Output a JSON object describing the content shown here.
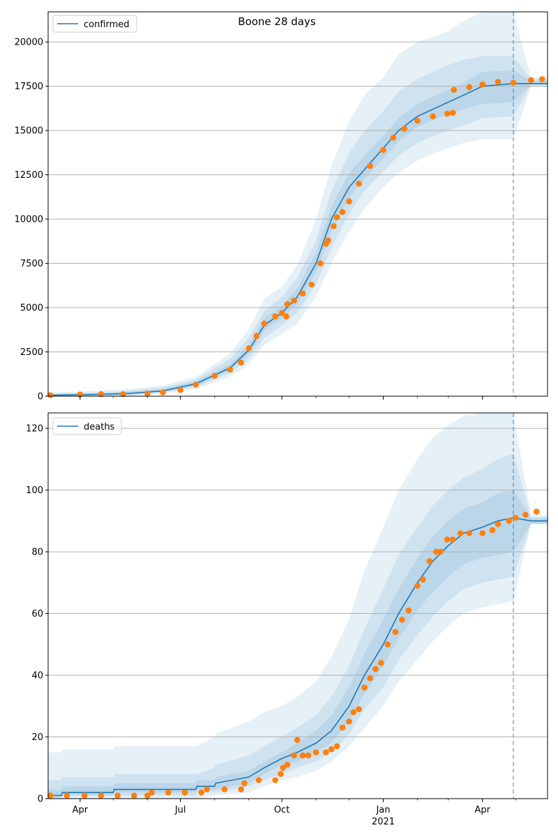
{
  "figure": {
    "title": "Boone 28 days"
  },
  "colors": {
    "model_line": "#1f77b4",
    "observed_points": "#ff7f0e",
    "band": "#1f77b4",
    "grid": "#b0b0b0",
    "forecast_marker": "#1f77b4"
  },
  "chart_data": [
    {
      "type": "line",
      "name": "confirmed",
      "x_tick_labels": [
        "Apr",
        "Jul",
        "Oct",
        "Jan",
        "Apr"
      ],
      "x_tick_dates": [
        "2020-04-01",
        "2020-07-01",
        "2020-10-01",
        "2021-01-01",
        "2021-04-01"
      ],
      "x_year_label": "2021",
      "xlim": [
        "2020-03-03",
        "2021-05-30"
      ],
      "forecast_start": "2021-04-29",
      "ylim": [
        0,
        21700
      ],
      "y_ticks": [
        0,
        2500,
        5000,
        7500,
        10000,
        12500,
        15000,
        17500,
        20000
      ],
      "grid": "horizontal",
      "legend": {
        "position": "top-left",
        "entries": [
          "confirmed"
        ]
      },
      "model": {
        "x": [
          "2020-03-03",
          "2020-04-15",
          "2020-05-15",
          "2020-06-15",
          "2020-07-15",
          "2020-08-15",
          "2020-09-01",
          "2020-09-15",
          "2020-10-01",
          "2020-10-15",
          "2020-11-01",
          "2020-11-15",
          "2020-12-01",
          "2020-12-15",
          "2021-01-01",
          "2021-01-15",
          "2021-02-01",
          "2021-02-15",
          "2021-03-01",
          "2021-03-15",
          "2021-04-01",
          "2021-04-29",
          "2021-05-15",
          "2021-05-30"
        ],
        "y": [
          50,
          100,
          150,
          300,
          700,
          1600,
          2600,
          4000,
          4700,
          5600,
          7500,
          10000,
          11800,
          12800,
          14000,
          15000,
          15800,
          16200,
          16600,
          17000,
          17500,
          17650,
          17650,
          17650
        ],
        "bands": [
          {
            "lower": [
              0,
              0,
              0,
              150,
              400,
              1100,
              1800,
              2900,
              3500,
              4100,
              5600,
              7500,
              9300,
              10600,
              11800,
              12600,
              13300,
              13700,
              14000,
              14300,
              14500,
              14500,
              17500,
              17500
            ],
            "upper": [
              200,
              300,
              400,
              600,
              1100,
              2400,
              3800,
              5500,
              6200,
              7400,
              10000,
              13000,
              15500,
              17000,
              18000,
              19300,
              20000,
              20300,
              20600,
              21200,
              21700,
              21700,
              18000,
              18000
            ]
          },
          {
            "lower": [
              0,
              0,
              50,
              200,
              500,
              1300,
              2100,
              3300,
              4000,
              4700,
              6300,
              8400,
              10300,
              11600,
              12700,
              13600,
              14300,
              14700,
              15000,
              15300,
              15700,
              15800,
              17550,
              17550
            ],
            "upper": [
              150,
              200,
              300,
              500,
              950,
              2100,
              3300,
              4800,
              5600,
              6700,
              8800,
              11600,
              13700,
              15000,
              16100,
              17200,
              17900,
              18300,
              18700,
              19000,
              19200,
              19200,
              17900,
              17900
            ]
          },
          {
            "lower": [
              0,
              50,
              100,
              250,
              600,
              1450,
              2400,
              3700,
              4400,
              5200,
              7000,
              9300,
              11200,
              12300,
              13400,
              14400,
              15200,
              15600,
              15900,
              16200,
              16500,
              16600,
              17600,
              17600
            ],
            "upper": [
              100,
              150,
              250,
              400,
              850,
              1800,
              2900,
              4400,
              5100,
              6100,
              8100,
              10700,
              12600,
              13600,
              14700,
              15700,
              16500,
              16900,
              17300,
              17700,
              18300,
              18400,
              17800,
              17800
            ]
          }
        ]
      },
      "observed": {
        "x": [
          "2020-03-05",
          "2020-04-01",
          "2020-04-20",
          "2020-05-10",
          "2020-06-01",
          "2020-06-15",
          "2020-07-01",
          "2020-07-15",
          "2020-08-01",
          "2020-08-15",
          "2020-08-25",
          "2020-09-01",
          "2020-09-08",
          "2020-09-15",
          "2020-09-25",
          "2020-10-01",
          "2020-10-05",
          "2020-10-06",
          "2020-10-12",
          "2020-10-20",
          "2020-10-28",
          "2020-11-05",
          "2020-11-10",
          "2020-11-12",
          "2020-11-17",
          "2020-11-20",
          "2020-11-25",
          "2020-12-01",
          "2020-12-10",
          "2020-12-20",
          "2021-01-01",
          "2021-01-10",
          "2021-01-20",
          "2021-02-01",
          "2021-02-15",
          "2021-02-28",
          "2021-03-05",
          "2021-03-06",
          "2021-03-20",
          "2021-04-01",
          "2021-04-15",
          "2021-04-29",
          "2021-05-15",
          "2021-05-25"
        ],
        "y": [
          60,
          100,
          120,
          120,
          150,
          220,
          350,
          650,
          1150,
          1500,
          1900,
          2700,
          3400,
          4100,
          4500,
          4700,
          4500,
          5200,
          5400,
          5800,
          6300,
          7500,
          8600,
          8800,
          9600,
          10100,
          10400,
          11000,
          12000,
          13000,
          13900,
          14600,
          15100,
          15550,
          15800,
          15950,
          16000,
          17300,
          17450,
          17600,
          17750,
          17700,
          17850,
          17900
        ]
      }
    },
    {
      "type": "line",
      "name": "deaths",
      "x_tick_labels": [
        "Apr",
        "Jul",
        "Oct",
        "Jan",
        "Apr"
      ],
      "x_tick_dates": [
        "2020-04-01",
        "2020-07-01",
        "2020-10-01",
        "2021-01-01",
        "2021-04-01"
      ],
      "x_year_label": "2021",
      "xlim": [
        "2020-03-03",
        "2021-05-30"
      ],
      "forecast_start": "2021-04-29",
      "ylim": [
        0,
        125
      ],
      "y_ticks": [
        0,
        20,
        40,
        60,
        80,
        100,
        120
      ],
      "grid": "horizontal",
      "legend": {
        "position": "top-left",
        "entries": [
          "deaths"
        ]
      },
      "model": {
        "x": [
          "2020-03-03",
          "2020-03-15",
          "2020-03-16",
          "2020-05-01",
          "2020-05-02",
          "2020-07-15",
          "2020-07-16",
          "2020-08-01",
          "2020-08-02",
          "2020-09-01",
          "2020-09-15",
          "2020-10-01",
          "2020-10-15",
          "2020-11-01",
          "2020-11-15",
          "2020-12-01",
          "2020-12-15",
          "2021-01-01",
          "2021-01-15",
          "2021-02-01",
          "2021-02-15",
          "2021-03-01",
          "2021-03-15",
          "2021-04-01",
          "2021-04-15",
          "2021-04-29",
          "2021-05-15",
          "2021-05-30"
        ],
        "y": [
          1,
          1,
          2,
          2,
          3,
          3,
          4,
          4,
          5,
          7,
          10,
          13,
          15,
          18,
          22,
          30,
          40,
          50,
          60,
          70,
          77,
          82,
          86,
          88,
          90,
          91,
          90,
          90
        ],
        "bands": [
          {
            "lower": [
              0,
              0,
              0,
              0,
              0,
              0,
              0,
              1,
              1,
              2,
              4,
              6,
              7,
              9,
              12,
              17,
              23,
              30,
              38,
              45,
              51,
              56,
              60,
              62,
              63,
              64,
              89,
              89
            ],
            "upper": [
              15,
              15,
              16,
              16,
              17,
              17,
              17,
              20,
              21,
              25,
              28,
              30,
              33,
              38,
              46,
              58,
              74,
              88,
              100,
              110,
              117,
              121,
              124,
              125,
              125,
              125,
              92,
              92
            ]
          },
          {
            "lower": [
              0,
              0,
              1,
              1,
              1,
              1,
              2,
              2,
              2,
              4,
              6,
              8,
              10,
              12,
              15,
              21,
              29,
              36,
              45,
              53,
              59,
              64,
              68,
              70,
              71,
              72,
              89,
              89
            ],
            "upper": [
              6,
              6,
              7,
              7,
              8,
              8,
              8,
              10,
              11,
              14,
              17,
              20,
              23,
              27,
              33,
              43,
              55,
              68,
              79,
              88,
              95,
              100,
              104,
              107,
              110,
              112,
              91,
              91
            ]
          },
          {
            "lower": [
              1,
              1,
              1,
              1,
              2,
              2,
              3,
              3,
              3,
              5,
              8,
              11,
              12,
              15,
              18,
              25,
              34,
              43,
              52,
              61,
              67,
              72,
              76,
              78,
              79,
              80,
              89,
              89
            ],
            "upper": [
              3,
              3,
              4,
              4,
              5,
              5,
              6,
              6,
              7,
              9,
              12,
              15,
              18,
              22,
              27,
              36,
              47,
              58,
              68,
              78,
              85,
              90,
              94,
              96,
              99,
              100,
              91,
              91
            ]
          }
        ]
      },
      "observed": {
        "x": [
          "2020-03-05",
          "2020-03-20",
          "2020-04-05",
          "2020-04-20",
          "2020-05-05",
          "2020-05-20",
          "2020-06-01",
          "2020-06-05",
          "2020-06-20",
          "2020-07-05",
          "2020-07-20",
          "2020-07-25",
          "2020-08-10",
          "2020-08-25",
          "2020-08-28",
          "2020-09-10",
          "2020-09-25",
          "2020-09-30",
          "2020-10-02",
          "2020-10-06",
          "2020-10-12",
          "2020-10-15",
          "2020-10-20",
          "2020-10-25",
          "2020-11-01",
          "2020-11-10",
          "2020-11-15",
          "2020-11-20",
          "2020-11-25",
          "2020-12-01",
          "2020-12-05",
          "2020-12-10",
          "2020-12-15",
          "2020-12-20",
          "2020-12-25",
          "2020-12-30",
          "2021-01-05",
          "2021-01-12",
          "2021-01-18",
          "2021-01-24",
          "2021-02-01",
          "2021-02-06",
          "2021-02-12",
          "2021-02-18",
          "2021-02-22",
          "2021-02-28",
          "2021-03-05",
          "2021-03-12",
          "2021-03-20",
          "2021-04-01",
          "2021-04-10",
          "2021-04-15",
          "2021-04-25",
          "2021-05-01",
          "2021-05-10",
          "2021-05-20"
        ],
        "y": [
          1,
          1,
          1,
          1,
          1,
          1,
          1,
          2,
          2,
          2,
          2,
          3,
          3,
          3,
          5,
          6,
          6,
          8,
          10,
          11,
          14,
          19,
          14,
          14,
          15,
          15,
          16,
          17,
          23,
          25,
          28,
          29,
          36,
          39,
          42,
          44,
          50,
          54,
          58,
          61,
          69,
          71,
          77,
          80,
          80,
          84,
          84,
          86,
          86,
          86,
          87,
          89,
          90,
          91,
          92,
          93
        ]
      }
    }
  ]
}
